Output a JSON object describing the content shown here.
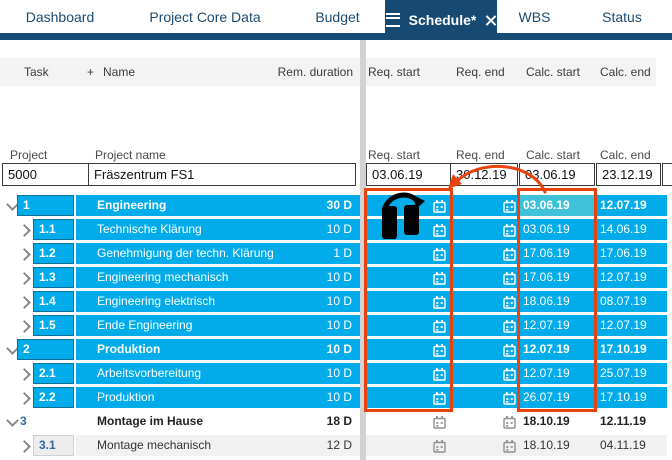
{
  "tabs": {
    "items": [
      {
        "label": "Dashboard"
      },
      {
        "label": "Project Core Data"
      },
      {
        "label": "Budget"
      },
      {
        "label": "Schedule*",
        "active": true,
        "has_menu_icon": true,
        "has_close_icon": true
      },
      {
        "label": "WBS"
      },
      {
        "label": "Status"
      }
    ],
    "active_bg": "#164a72"
  },
  "columns": {
    "left": {
      "task": "Task",
      "add": "+",
      "name": "Name",
      "rem_duration": "Rem. duration"
    },
    "right": {
      "req_start": "Req. start",
      "req_end": "Req. end",
      "calc_start": "Calc. start",
      "calc_end": "Calc. end"
    }
  },
  "project": {
    "id_label": "Project",
    "name_label": "Project name",
    "id": "5000",
    "name": "Fräszentrum FS1",
    "req_start": "03.06.19",
    "req_end": "30.12.19",
    "calc_start": "03.06.19",
    "calc_end": "23.12.19"
  },
  "rows": [
    {
      "task": "1",
      "name": "Engineering",
      "duration": "30 D",
      "calc_start": "03.06.19",
      "calc_end": "12.07.19",
      "level": 0,
      "style": "cyan",
      "selected_calc_start": true
    },
    {
      "task": "1.1",
      "name": "Technische Klärung",
      "duration": "10 D",
      "calc_start": "03.06.19",
      "calc_end": "14.06.19",
      "level": 1,
      "style": "cyan"
    },
    {
      "task": "1.2",
      "name": "Genehmigung der techn. Klärung",
      "duration": "1 D",
      "calc_start": "17.06.19",
      "calc_end": "17.06.19",
      "level": 1,
      "style": "cyan"
    },
    {
      "task": "1.3",
      "name": "Engineering mechanisch",
      "duration": "10 D",
      "calc_start": "17.06.19",
      "calc_end": "12.07.19",
      "level": 1,
      "style": "cyan"
    },
    {
      "task": "1.4",
      "name": "Engineering elektrisch",
      "duration": "10 D",
      "calc_start": "18.06.19",
      "calc_end": "08.07.19",
      "level": 1,
      "style": "cyan"
    },
    {
      "task": "1.5",
      "name": "Ende Engineering",
      "duration": "10 D",
      "calc_start": "12.07.19",
      "calc_end": "12.07.19",
      "level": 1,
      "style": "cyan"
    },
    {
      "task": "2",
      "name": "Produktion",
      "duration": "10 D",
      "calc_start": "12.07.19",
      "calc_end": "17.10.19",
      "level": 0,
      "style": "cyan"
    },
    {
      "task": "2.1",
      "name": "Arbeitsvorbereitung",
      "duration": "10 D",
      "calc_start": "12.07.19",
      "calc_end": "25.07.19",
      "level": 1,
      "style": "cyan"
    },
    {
      "task": "2.2",
      "name": "Produktion",
      "duration": "10 D",
      "calc_start": "26.07.19",
      "calc_end": "17.10.19",
      "level": 1,
      "style": "cyan"
    },
    {
      "task": "3",
      "name": "Montage im Hause",
      "duration": "18 D",
      "calc_start": "18.10.19",
      "calc_end": "12.11.19",
      "level": 0,
      "style": "white"
    },
    {
      "task": "3.1",
      "name": "Montage mechanisch",
      "duration": "12 D",
      "calc_start": "18.10.19",
      "calc_end": "04.11.19",
      "level": 1,
      "style": "gray"
    }
  ],
  "annotations": {
    "color": "#e8430d",
    "boxes": [
      {
        "target": "req-start-column"
      },
      {
        "target": "calc-start-column"
      }
    ],
    "arrow": {
      "from": "calc-start-column",
      "to": "req-start-column"
    },
    "overlay_icon": "headphones-icon"
  },
  "colors": {
    "row_cyan": "#02acea",
    "selected_cell": "#3fc1da",
    "active_tab": "#164a72",
    "annotation": "#e8430d"
  }
}
